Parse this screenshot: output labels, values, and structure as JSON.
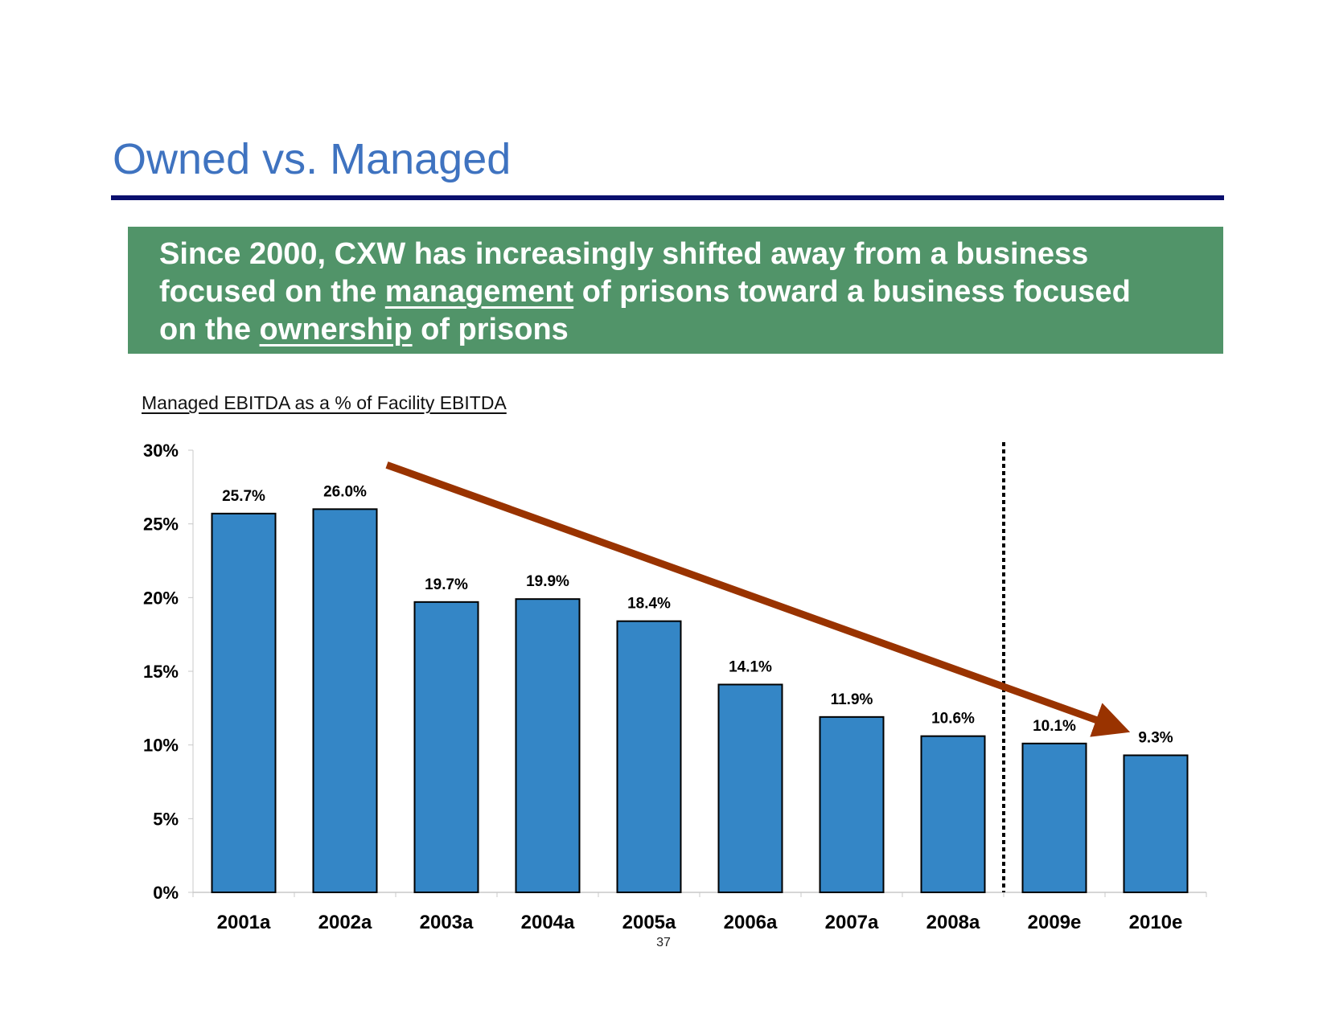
{
  "slide": {
    "title": "Owned vs. Managed",
    "callout": {
      "line1": "Since 2000, CXW has increasingly shifted away from a business",
      "line2_pre": "focused on the ",
      "line2_emph": "management",
      "line2_post": " of prisons toward a business focused",
      "line3_pre": "on the ",
      "line3_emph": "ownership",
      "line3_post": " of prisons"
    },
    "page_number": "37"
  },
  "colors": {
    "title": "#3f73c0",
    "rule": "#0a0f6e",
    "callout_bg": "#519469",
    "bar": "#3486c6",
    "arrow": "#993300"
  },
  "chart_data": {
    "type": "bar",
    "title": "Managed EBITDA as a % of Facility EBITDA",
    "xlabel": "",
    "ylabel": "",
    "categories": [
      "2001a",
      "2002a",
      "2003a",
      "2004a",
      "2005a",
      "2006a",
      "2007a",
      "2008a",
      "2009e",
      "2010e"
    ],
    "values": [
      25.7,
      26.0,
      19.7,
      19.9,
      18.4,
      14.1,
      11.9,
      10.6,
      10.1,
      9.3
    ],
    "value_labels": [
      "25.7%",
      "26.0%",
      "19.7%",
      "19.9%",
      "18.4%",
      "14.1%",
      "11.9%",
      "10.6%",
      "10.1%",
      "9.3%"
    ],
    "ylim": [
      0,
      30
    ],
    "yticks": [
      0,
      5,
      10,
      15,
      20,
      25,
      30
    ],
    "ytick_labels": [
      "0%",
      "5%",
      "10%",
      "15%",
      "20%",
      "25%",
      "30%"
    ],
    "grid": false,
    "annotations": [
      {
        "type": "trend-arrow",
        "description": "downward trend arrow"
      },
      {
        "type": "divider",
        "style": "dotted",
        "between": [
          "2008a",
          "2009e"
        ],
        "meaning": "actual vs. estimate"
      }
    ]
  }
}
